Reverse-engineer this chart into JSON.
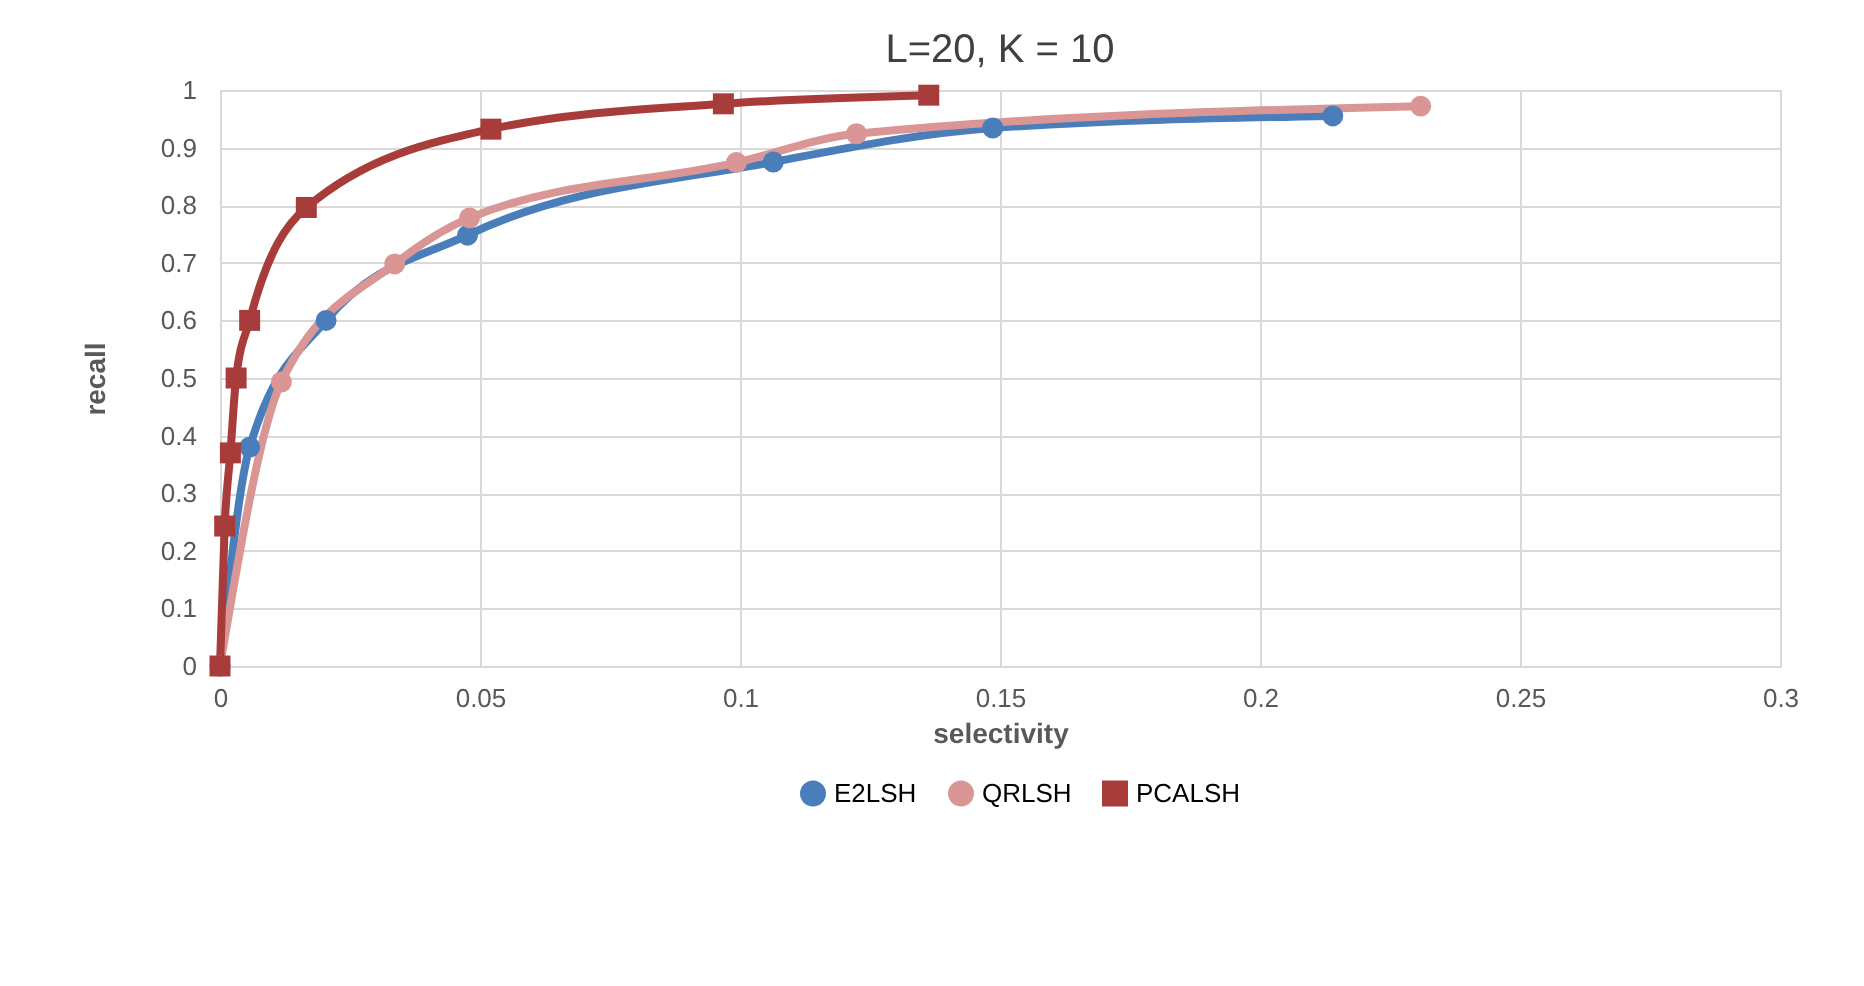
{
  "chart_data": {
    "type": "line",
    "title": "L=20, K = 10",
    "xlabel": "selectivity",
    "ylabel": "recall",
    "xlim": [
      0,
      0.3
    ],
    "xticks": [
      0,
      0.05,
      0.1,
      0.15,
      0.2,
      0.25,
      0.3
    ],
    "ylim": [
      0,
      1
    ],
    "yticks": [
      0,
      0.1,
      0.2,
      0.3,
      0.4,
      0.5,
      0.6,
      0.7,
      0.8,
      0.9,
      1
    ],
    "grid": true,
    "legend": "bottom",
    "series": [
      {
        "name": "E2LSH",
        "color": "#4a7ebb",
        "marker": "circle",
        "x": [
          0,
          0.0057,
          0.0204,
          0.0476,
          0.1064,
          0.1486,
          0.214
        ],
        "values": [
          0,
          0.38,
          0.6,
          0.748,
          0.875,
          0.934,
          0.955
        ]
      },
      {
        "name": "QRLSH",
        "color": "#d99694",
        "marker": "circle",
        "x": [
          0,
          0.0118,
          0.0336,
          0.048,
          0.0993,
          0.1224,
          0.2309
        ],
        "values": [
          0,
          0.493,
          0.698,
          0.778,
          0.874,
          0.924,
          0.972
        ]
      },
      {
        "name": "PCALSH",
        "color": "#a83c3a",
        "marker": "square",
        "x": [
          0,
          0.0009,
          0.002,
          0.0031,
          0.0057,
          0.0166,
          0.0521,
          0.0968,
          0.1363
        ],
        "values": [
          0,
          0.243,
          0.37,
          0.5,
          0.6,
          0.796,
          0.932,
          0.976,
          0.991
        ]
      }
    ]
  }
}
